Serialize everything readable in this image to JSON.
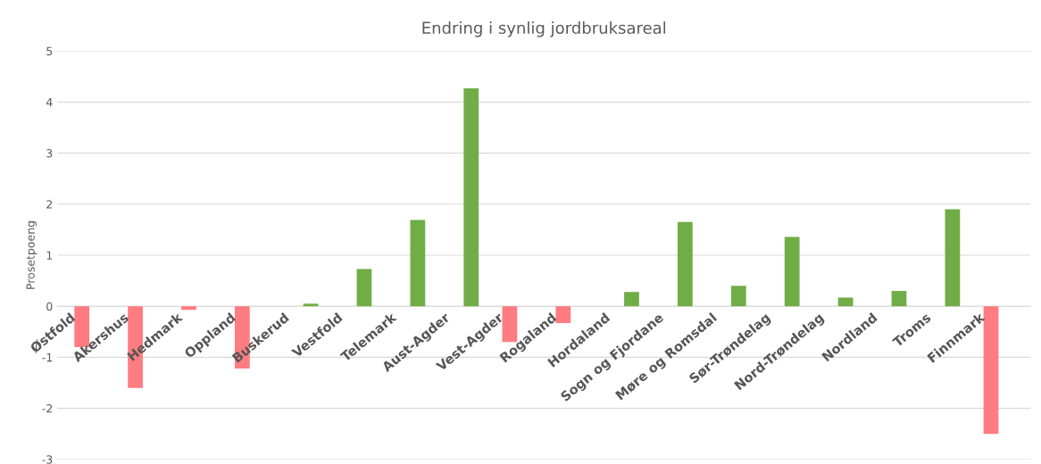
{
  "chart_data": {
    "type": "bar",
    "title": "Endring i synlig jordbruksareal",
    "ylabel": "Prosetpoeng",
    "categories": [
      "Østfold",
      "Akershus",
      "Hedmark",
      "Oppland",
      "Buskerud",
      "Vestfold",
      "Telemark",
      "Aust-Agder",
      "Vest-Agder",
      "Rogaland",
      "Hordaland",
      "Sogn og Fjordane",
      "Møre og Romsdal",
      "Sør-Trøndelag",
      "Nord-Trøndelag",
      "Nordland",
      "Troms",
      "Finnmark"
    ],
    "series": [
      {
        "color": "#ff7c80",
        "values": [
          -0.8,
          -1.6,
          -0.07,
          -1.22,
          null,
          null,
          null,
          null,
          -0.7,
          -0.33,
          null,
          null,
          null,
          null,
          null,
          null,
          null,
          -2.5
        ]
      },
      {
        "color": "#70ad47",
        "values": [
          null,
          null,
          null,
          null,
          0.05,
          0.73,
          1.69,
          4.27,
          null,
          null,
          0.28,
          1.65,
          0.4,
          1.36,
          0.17,
          0.3,
          1.9,
          null
        ]
      }
    ],
    "ylim": [
      -3,
      5
    ],
    "yticks": [
      -3,
      -2,
      -1,
      0,
      1,
      2,
      3,
      4,
      5
    ],
    "grid": "y",
    "legend": false
  }
}
